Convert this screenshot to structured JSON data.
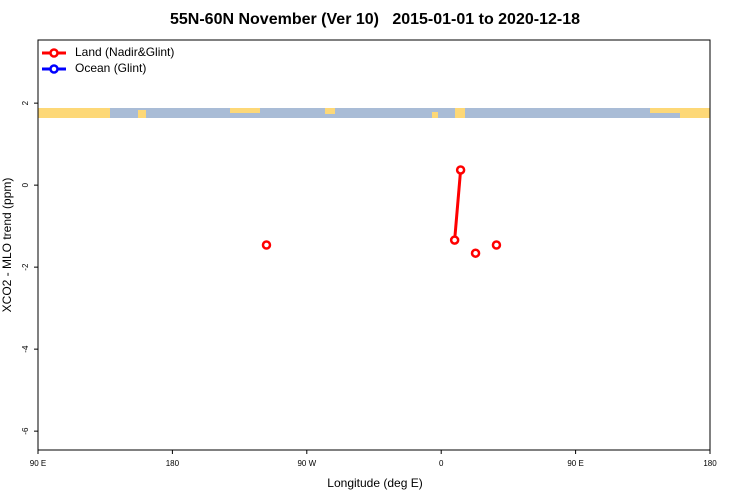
{
  "chart_data": {
    "type": "line",
    "title": "55N-60N November (Ver 10)   2015-01-01 to 2020-12-18",
    "x_label": "Longitude (deg E)",
    "y_label": "XCO2 - MLO trend (ppm)",
    "xlim": [
      90,
      540
    ],
    "xticks": [
      {
        "value": 90,
        "label": "90 E"
      },
      180,
      {
        "value": 270,
        "label": "90 W"
      },
      {
        "value": 360,
        "label": "0"
      },
      {
        "value": 450,
        "label": "90 E"
      },
      {
        "value": 540,
        "label": "180"
      }
    ],
    "ylim": [
      -6.46,
      3.54
    ],
    "yticks": [
      2,
      0,
      -2,
      -4,
      -6
    ],
    "legend": "top-left",
    "series": [
      {
        "name": "Land (Nadir&Glint)",
        "color": "#ff0000",
        "x": [
          243,
          null,
          369,
          373,
          null,
          383,
          null,
          397
        ],
        "values": [
          -1.46,
          null,
          -1.34,
          0.37,
          null,
          -1.66,
          null,
          -1.46
        ]
      },
      {
        "name": "Ocean (Glint)",
        "color": "#0000ff",
        "x": [],
        "values": []
      }
    ]
  }
}
